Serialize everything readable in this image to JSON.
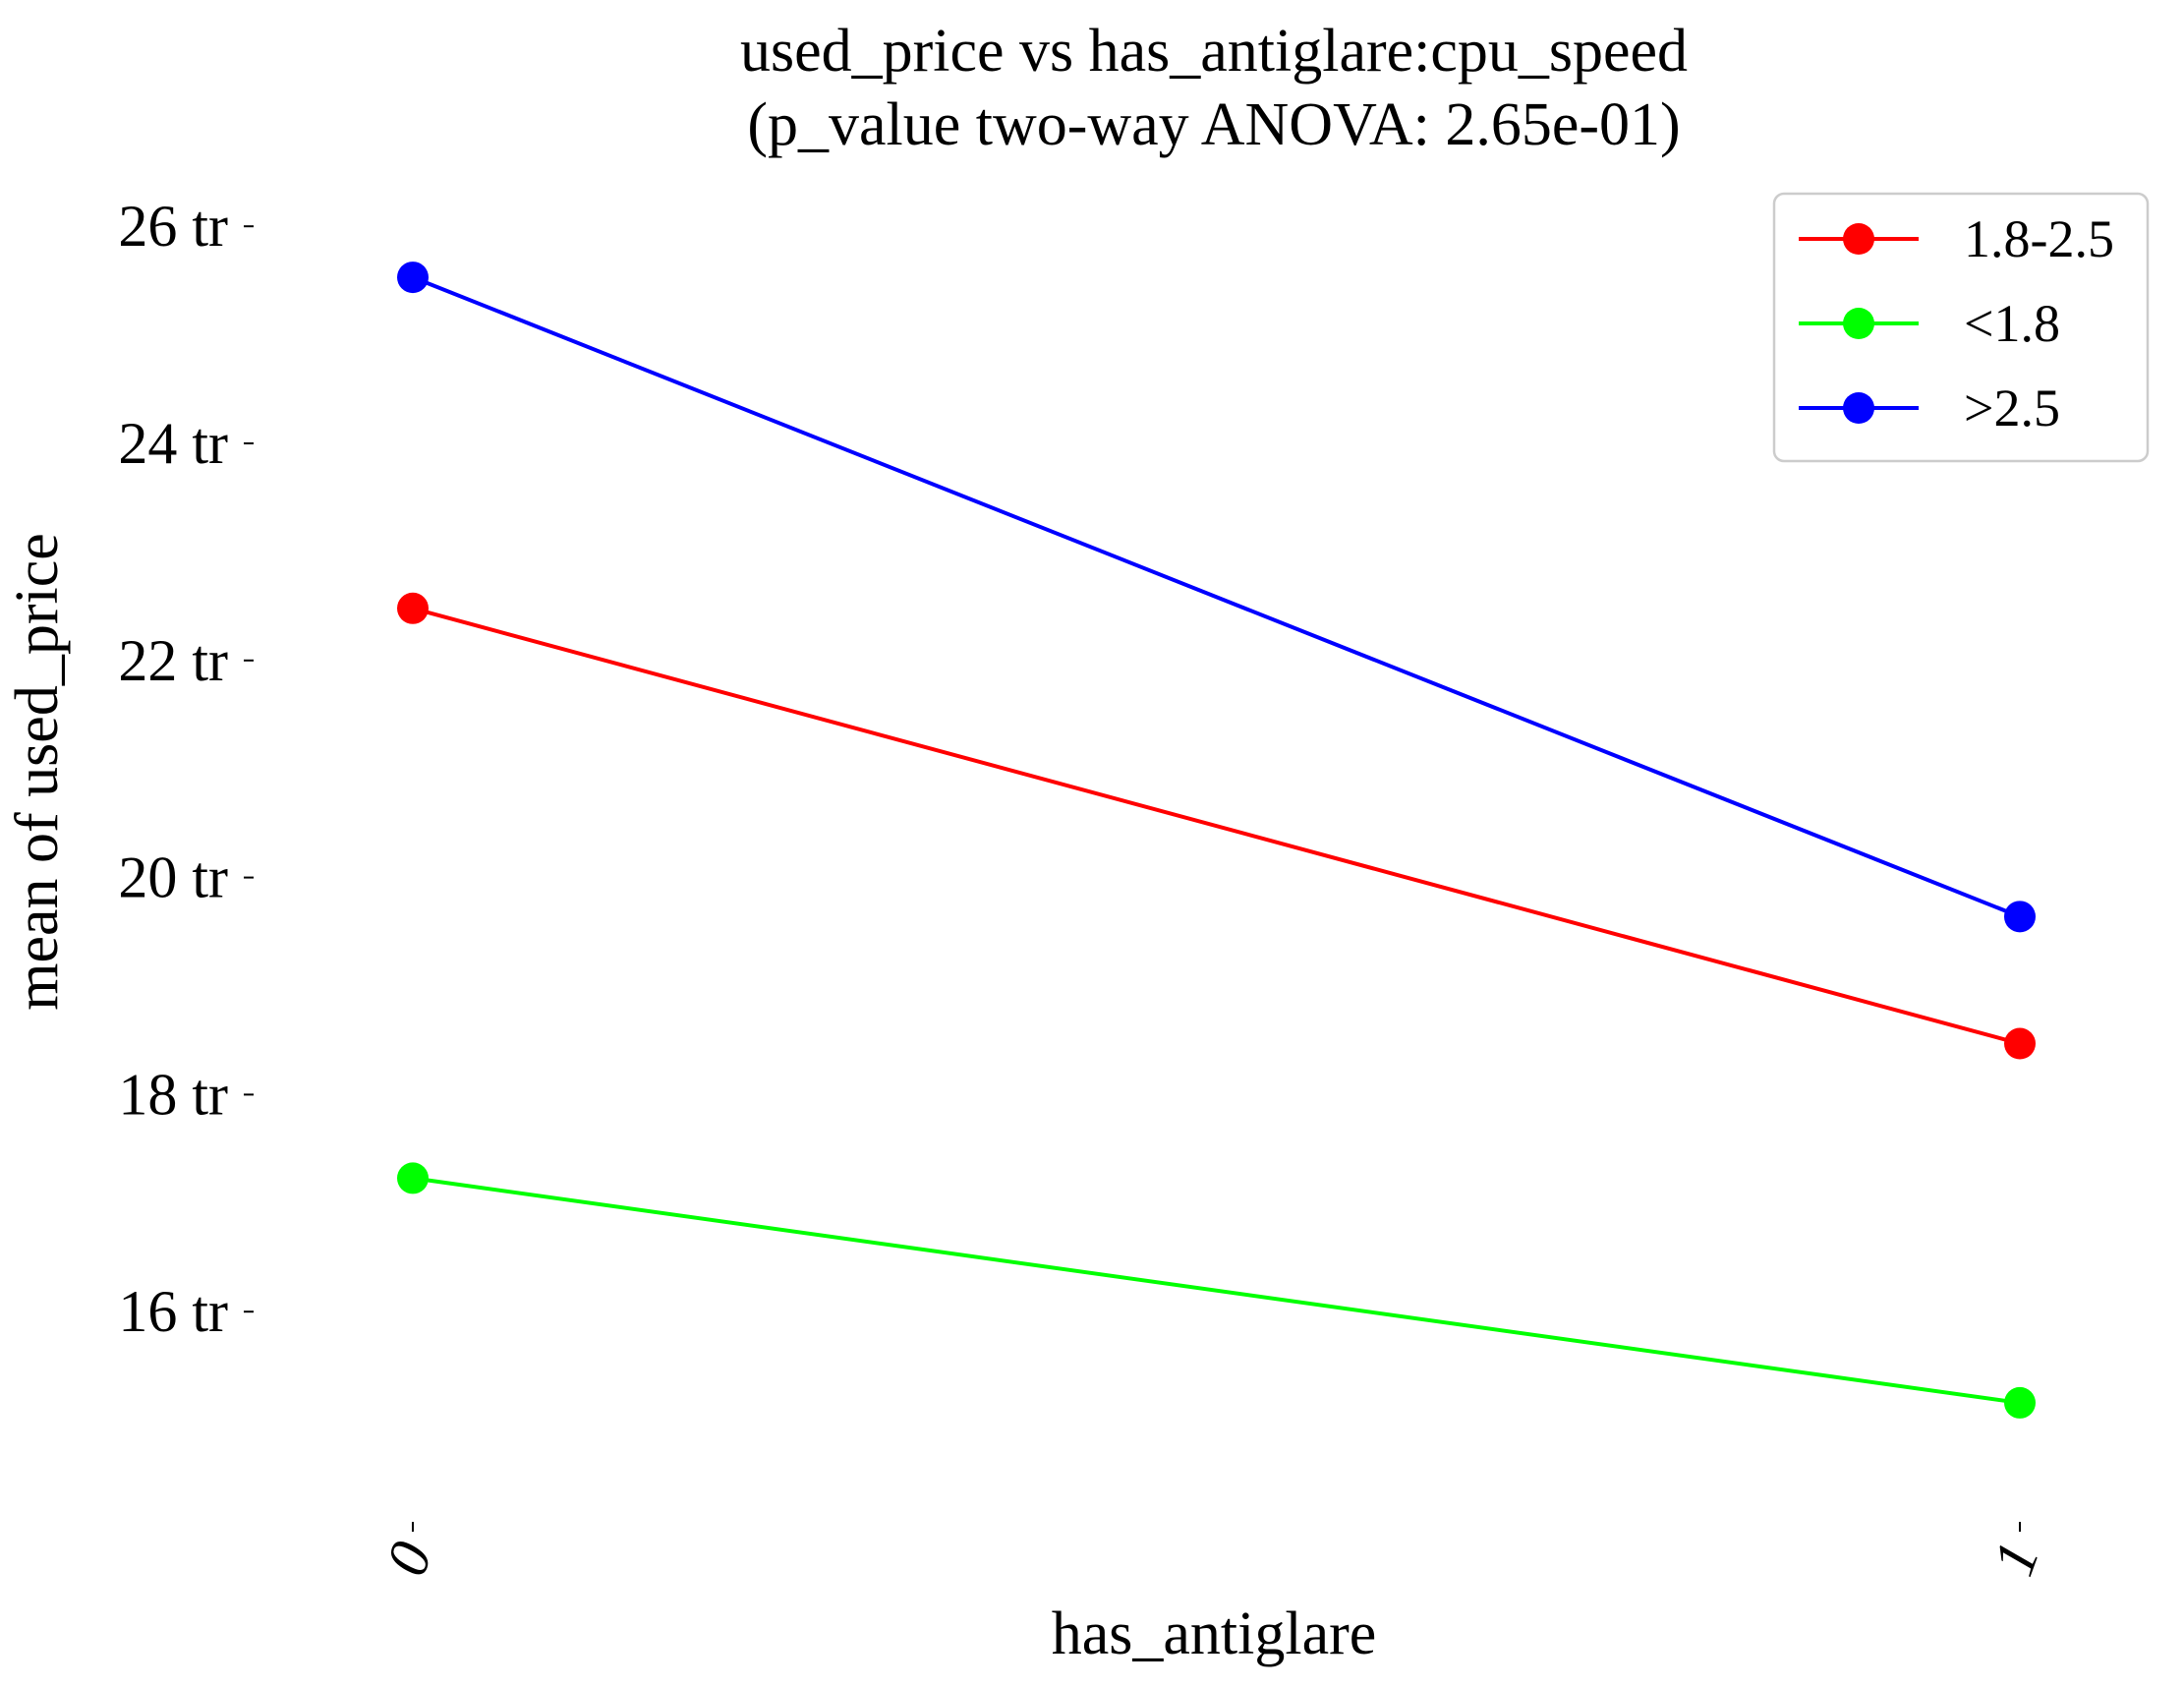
{
  "chart_data": {
    "type": "line",
    "title": "used_price vs has_antiglare:cpu_speed",
    "subtitle": "(p_value two-way ANOVA: 2.65e-01)",
    "xlabel": "has_antiglare",
    "ylabel": "mean of used_price",
    "categories": [
      "0",
      "1"
    ],
    "ylim": [
      14.0,
      26.5
    ],
    "yticks": [
      16,
      18,
      20,
      22,
      24,
      26
    ],
    "ytick_labels": [
      "16 tr",
      "18 tr",
      "20 tr",
      "22 tr",
      "24 tr",
      "26 tr"
    ],
    "grid": false,
    "legend_position": "top-right",
    "series": [
      {
        "name": "1.8-2.5",
        "color": "#ff0000",
        "values": [
          22.48,
          18.47
        ]
      },
      {
        "name": "<1.8",
        "color": "#00ff00",
        "values": [
          17.23,
          15.16
        ]
      },
      {
        "name": ">2.5",
        "color": "#0000ff",
        "values": [
          25.53,
          19.64
        ]
      }
    ]
  }
}
